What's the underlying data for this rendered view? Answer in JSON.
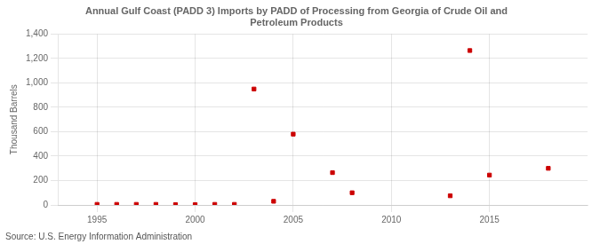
{
  "chart_data": {
    "type": "scatter",
    "title": "Annual Gulf Coast (PADD 3) Imports by PADD of Processing from Georgia of Crude Oil and\nPetroleum Products",
    "ylabel": "Thousand Barrels",
    "annotations": [
      "Source: U.S. Energy Information Administration"
    ],
    "x": [
      1995,
      1996,
      1997,
      1998,
      1999,
      2000,
      2001,
      2002,
      2003,
      2004,
      2005,
      2007,
      2008,
      2013,
      2014,
      2015,
      2018
    ],
    "values": [
      5,
      5,
      5,
      5,
      3,
      3,
      5,
      5,
      950,
      30,
      580,
      265,
      100,
      75,
      1265,
      245,
      300
    ],
    "color": "#cc0000",
    "marker": "square",
    "xlim": [
      1993,
      2020
    ],
    "ylim": [
      0,
      1400
    ],
    "xticks": [
      1995,
      2000,
      2005,
      2010,
      2015
    ],
    "yticks": [
      0,
      200,
      400,
      600,
      800,
      {
        "value": 1000,
        "label": "1,000"
      },
      {
        "value": 1200,
        "label": "1,200"
      },
      {
        "value": 1400,
        "label": "1,400"
      }
    ],
    "grid": true
  }
}
